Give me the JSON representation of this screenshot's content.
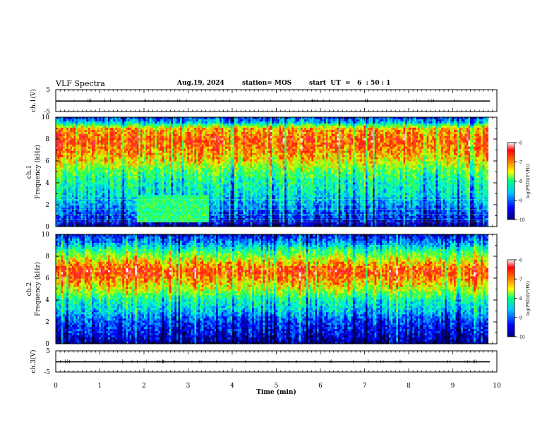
{
  "header": {
    "title": "VLF Spectra",
    "date": "Aug.19, 2024",
    "station": "station= MOS",
    "start": "start  UT  =   6  : 50 : 1"
  },
  "chart_data": [
    {
      "type": "line",
      "panel": "ch1-waveform",
      "ylabel": "ch.1(V)",
      "ylim": [
        -5,
        5
      ],
      "yticks": [
        "5",
        "-5"
      ],
      "x": [
        0,
        10
      ],
      "y": [
        -0.2,
        -0.2
      ]
    },
    {
      "type": "heatmap",
      "panel": "ch1-spectrogram",
      "ylabel": "ch.1\nFrequency (kHz)",
      "ylabel_lines": [
        "ch.1",
        "Frequency (kHz)"
      ],
      "ylim": [
        0,
        10
      ],
      "yticks": [
        "0",
        "2",
        "4",
        "6",
        "8",
        "10"
      ],
      "xlim": [
        0,
        10
      ],
      "data_end_min": 9.8,
      "band_intensity_profile": [
        [
          0.0,
          -10
        ],
        [
          0.4,
          -9.6
        ],
        [
          1.0,
          -9.4
        ],
        [
          2.0,
          -9.0
        ],
        [
          3.0,
          -8.6
        ],
        [
          4.0,
          -8.4
        ],
        [
          5.0,
          -8.0
        ],
        [
          6.0,
          -7.4
        ],
        [
          7.0,
          -7.0
        ],
        [
          8.0,
          -6.8
        ],
        [
          9.0,
          -7.2
        ],
        [
          9.5,
          -8.8
        ],
        [
          10.0,
          -9.4
        ]
      ],
      "interference_block": {
        "t_min": [
          1.8,
          3.45
        ],
        "f_khz": [
          0.3,
          2.8
        ]
      },
      "colorbar": {
        "label": "log(PSD)(V²/Hz)",
        "ticks": [
          "-6",
          "-7",
          "-8",
          "-9",
          "-10"
        ],
        "range": [
          -10,
          -6
        ]
      }
    },
    {
      "type": "heatmap",
      "panel": "ch2-spectrogram",
      "ylabel": "ch.2\nFrequency (kHz)",
      "ylabel_lines": [
        "ch.2",
        "Frequency (kHz)"
      ],
      "ylim": [
        0,
        10
      ],
      "yticks": [
        "0",
        "2",
        "4",
        "6",
        "8",
        "10"
      ],
      "xlim": [
        0,
        10
      ],
      "data_end_min": 9.8,
      "band_intensity_profile": [
        [
          0.0,
          -10
        ],
        [
          1.0,
          -9.6
        ],
        [
          2.0,
          -9.4
        ],
        [
          3.0,
          -8.8
        ],
        [
          4.0,
          -8.4
        ],
        [
          5.0,
          -7.6
        ],
        [
          6.0,
          -7.0
        ],
        [
          6.6,
          -6.7
        ],
        [
          7.5,
          -7.3
        ],
        [
          8.5,
          -8.2
        ],
        [
          9.2,
          -9.0
        ],
        [
          10.0,
          -9.6
        ]
      ],
      "colorbar": {
        "label": "log(PSD)(V²/Hz)",
        "ticks": [
          "-6",
          "-7",
          "-8",
          "-9",
          "-10"
        ],
        "range": [
          -10,
          -6
        ]
      }
    },
    {
      "type": "line",
      "panel": "ch3-waveform",
      "ylabel": "ch.3(V)",
      "ylim": [
        -5,
        5
      ],
      "yticks": [
        "5",
        "-5"
      ],
      "x": [
        0,
        10
      ],
      "y": [
        -0.2,
        -0.2
      ]
    }
  ],
  "xaxis": {
    "label": "Time (min)",
    "ticks": [
      "0",
      "1",
      "2",
      "3",
      "4",
      "5",
      "6",
      "7",
      "8",
      "9",
      "10"
    ],
    "range": [
      0,
      10
    ]
  },
  "colors": {
    "colormap": [
      "#00007f",
      "#0000ff",
      "#00c8ff",
      "#00ff80",
      "#ffff00",
      "#ff8000",
      "#ff0000",
      "#ffffff"
    ]
  }
}
